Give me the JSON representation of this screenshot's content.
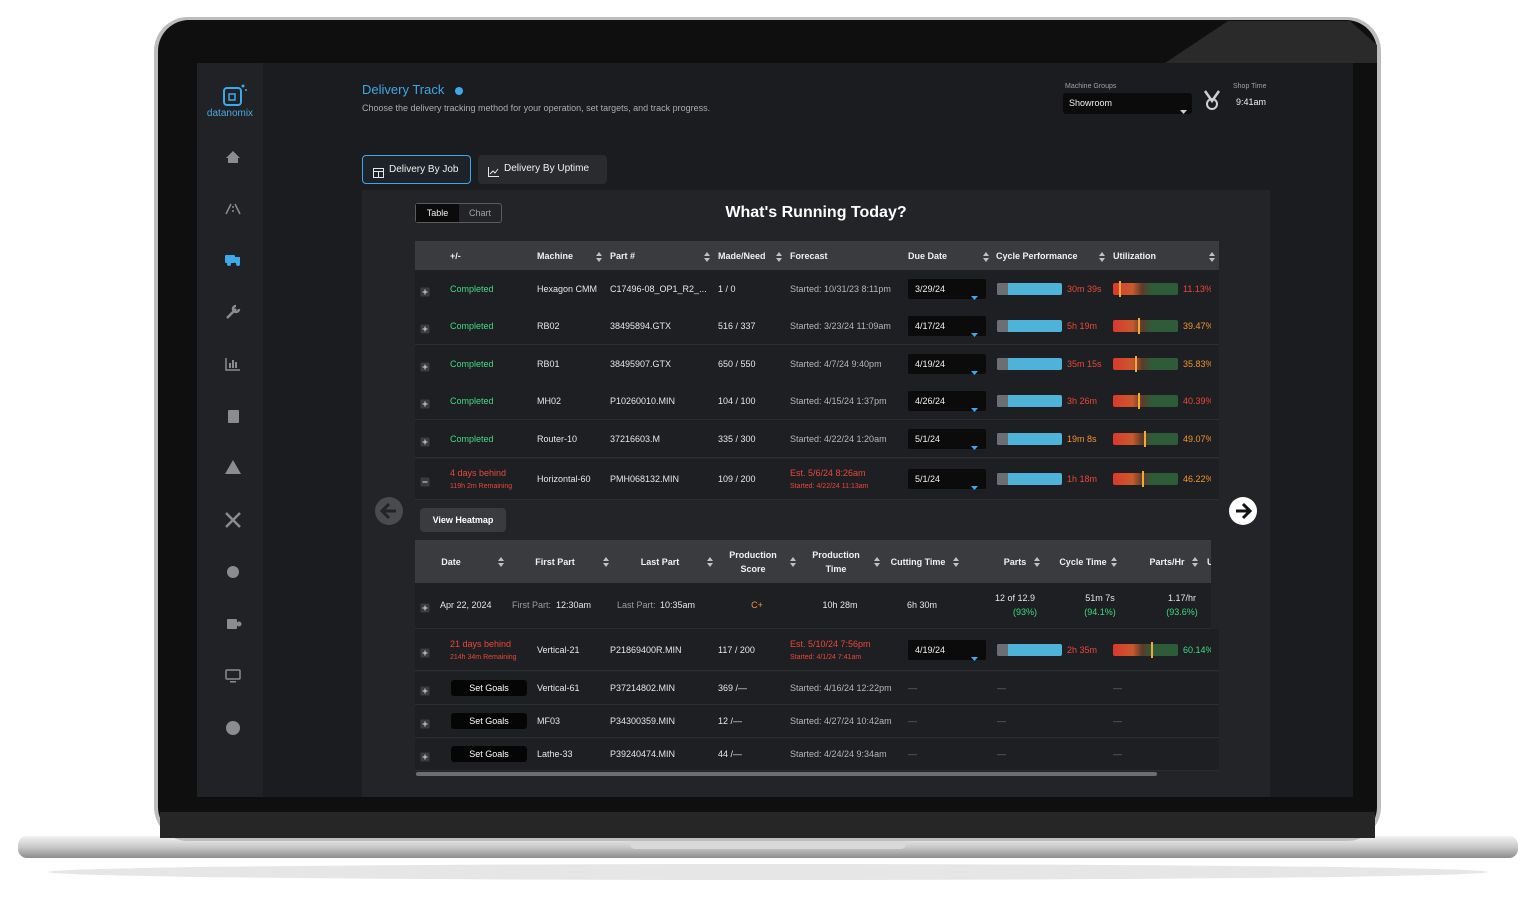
{
  "brand": "datanomix",
  "header": {
    "title": "Delivery Track",
    "subtitle": "Choose the delivery tracking method for your operation, set targets, and track progress.",
    "machine_groups_label": "Machine Groups",
    "machine_group": "Showroom",
    "shop_time_label": "Shop Time",
    "shop_time": "9:41am"
  },
  "tabs": [
    "Delivery By Job",
    "Delivery By Uptime"
  ],
  "view_toggle": [
    "Table",
    "Chart"
  ],
  "panel_title": "What's Running Today?",
  "table": {
    "columns": [
      "+/-",
      "Machine",
      "Part #",
      "Made/Need",
      "Forecast",
      "Due Date",
      "Cycle Performance",
      "Utilization"
    ],
    "rows": [
      {
        "status": "Completed",
        "status_color": "#3ddc84",
        "machine": "Hexagon CMM",
        "part": "C17496-08_OP1_R2_...",
        "made": "1 / 0",
        "forecast": "Started: 10/31/23 8:11pm",
        "due": "3/29/24",
        "cycle": "30m 39s",
        "cycle_color": "#e8483c",
        "utilization": 11.13,
        "utilization_label": "11.13%",
        "utilization_color": "#e8483c"
      },
      {
        "status": "Completed",
        "status_color": "#3ddc84",
        "machine": "RB02",
        "part": "38495894.GTX",
        "made": "516 / 337",
        "forecast": "Started: 3/23/24 11:09am",
        "due": "4/17/24",
        "cycle": "5h 19m",
        "cycle_color": "#e8483c",
        "utilization": 39.47,
        "utilization_label": "39.47%",
        "utilization_color": "#f0962e"
      },
      {
        "status": "Completed",
        "status_color": "#3ddc84",
        "machine": "RB01",
        "part": "38495907.GTX",
        "made": "650 / 550",
        "forecast": "Started: 4/7/24 9:40pm",
        "due": "4/19/24",
        "cycle": "35m 15s",
        "cycle_color": "#e8483c",
        "utilization": 35.83,
        "utilization_label": "35.83%",
        "utilization_color": "#f0962e"
      },
      {
        "status": "Completed",
        "status_color": "#3ddc84",
        "machine": "MH02",
        "part": "P10260010.MIN",
        "made": "104 / 100",
        "forecast": "Started: 4/15/24 1:37pm",
        "due": "4/26/24",
        "cycle": "3h 26m",
        "cycle_color": "#e8483c",
        "utilization": 40.39,
        "utilization_label": "40.39%",
        "utilization_color": "#e8483c"
      },
      {
        "status": "Completed",
        "status_color": "#3ddc84",
        "machine": "Router-10",
        "part": "37216603.M",
        "made": "335 / 300",
        "forecast": "Started: 4/22/24 1:20am",
        "due": "5/1/24",
        "cycle": "19m 8s",
        "cycle_color": "#f0962e",
        "utilization": 49.07,
        "utilization_label": "49.07%",
        "utilization_color": "#f0962e"
      },
      {
        "status": "4 days behind",
        "status_sub": "119h 2m Remaining",
        "status_color": "#e8483c",
        "machine": "Horizontal-60",
        "part": "PMH068132.MIN",
        "made": "109 / 200",
        "forecast": "Est. 5/6/24 8:26am",
        "forecast_sub": "Started: 4/22/24 11:13am",
        "forecast_color": "#e8483c",
        "due": "5/1/24",
        "cycle": "1h 18m",
        "cycle_color": "#e8483c",
        "utilization": 46.22,
        "utilization_label": "46.22%",
        "utilization_color": "#f0962e",
        "expanded": true
      },
      {
        "status": "21 days behind",
        "status_sub": "214h 34m Remaining",
        "status_color": "#e8483c",
        "machine": "Vertical-21",
        "part": "P21869400R.MIN",
        "made": "117 / 200",
        "forecast": "Est. 5/10/24 7:56pm",
        "forecast_sub": "Started: 4/1/24 7:41am",
        "forecast_color": "#e8483c",
        "due": "4/19/24",
        "cycle": "2h 35m",
        "cycle_color": "#e8483c",
        "utilization": 60.14,
        "utilization_label": "60.14%",
        "utilization_color": "#3ddc84"
      },
      {
        "goal": "Set Goals",
        "machine": "Vertical-61",
        "part": "P37214802.MIN",
        "made": "369 /—",
        "forecast": "Started: 4/16/24 12:22pm",
        "due": "—",
        "cycle": "—",
        "utilization_label": "—"
      },
      {
        "goal": "Set Goals",
        "machine": "MF03",
        "part": "P34300359.MIN",
        "made": "12 /—",
        "forecast": "Started: 4/27/24 10:42am",
        "due": "—",
        "cycle": "—",
        "utilization_label": "—"
      },
      {
        "goal": "Set Goals",
        "machine": "Lathe-33",
        "part": "P39240474.MIN",
        "made": "44 /—",
        "forecast": "Started: 4/24/24 9:34am",
        "due": "—",
        "cycle": "—",
        "utilization_label": "—"
      }
    ]
  },
  "heatmap_button": "View Heatmap",
  "detail": {
    "columns": [
      "Date",
      "First Part",
      "Last Part",
      "Production Score",
      "Production Time",
      "Cutting Time",
      "Parts",
      "Cycle Time",
      "Parts/Hr",
      "U"
    ],
    "date": "Apr 22, 2024",
    "first_part_label": "First Part:",
    "first_part": "12:30am",
    "last_part_label": "Last Part:",
    "last_part": "10:35am",
    "score": "C+",
    "production_time": "10h 28m",
    "cutting_time": "6h 30m",
    "parts": "12 of 12.9",
    "parts_pct": "(93%)",
    "cycle_time": "51m 7s",
    "cycle_pct": "(94.1%)",
    "parts_per_hr": "1.17/hr",
    "parts_per_hr_pct": "(93.6%)"
  }
}
